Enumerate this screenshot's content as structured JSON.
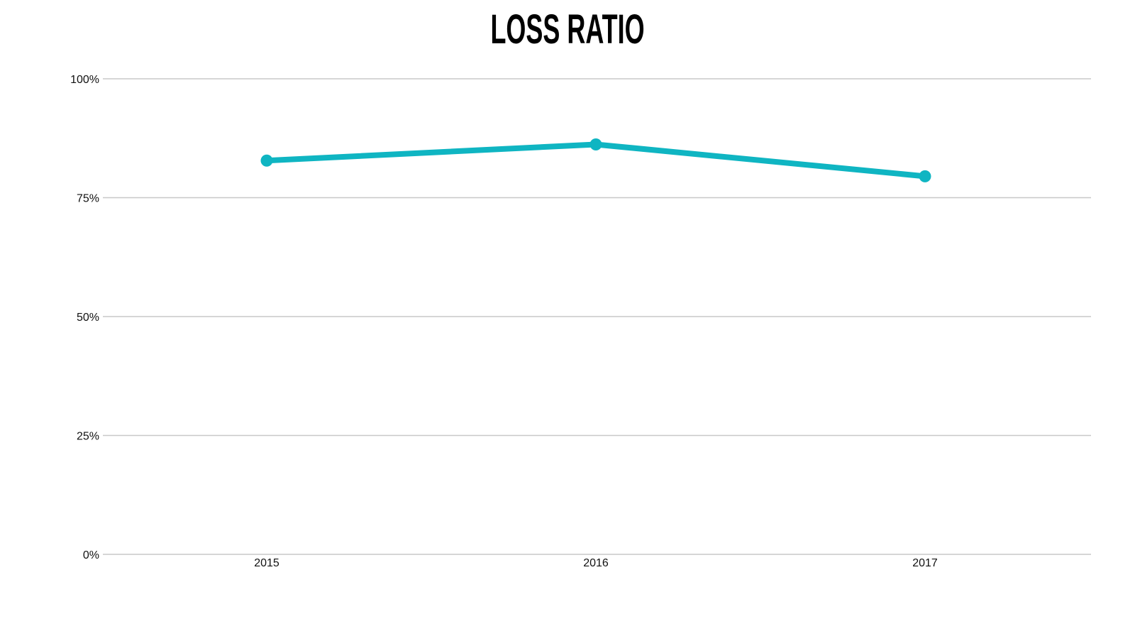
{
  "chart_data": {
    "type": "line",
    "title": "LOSS RATIO",
    "categories": [
      "2015",
      "2016",
      "2017"
    ],
    "series": [
      {
        "values": [
          0.828,
          0.862,
          0.795
        ],
        "color": "#0FB5C2"
      }
    ],
    "ylim": [
      0,
      1
    ],
    "yticks": [
      {
        "value": 0,
        "label": "0%"
      },
      {
        "value": 0.25,
        "label": "25%"
      },
      {
        "value": 0.5,
        "label": "50%"
      },
      {
        "value": 0.75,
        "label": "75%"
      },
      {
        "value": 1,
        "label": "100%"
      }
    ],
    "grid": true,
    "legend": "none",
    "gridColor": "#C8C8C8"
  }
}
